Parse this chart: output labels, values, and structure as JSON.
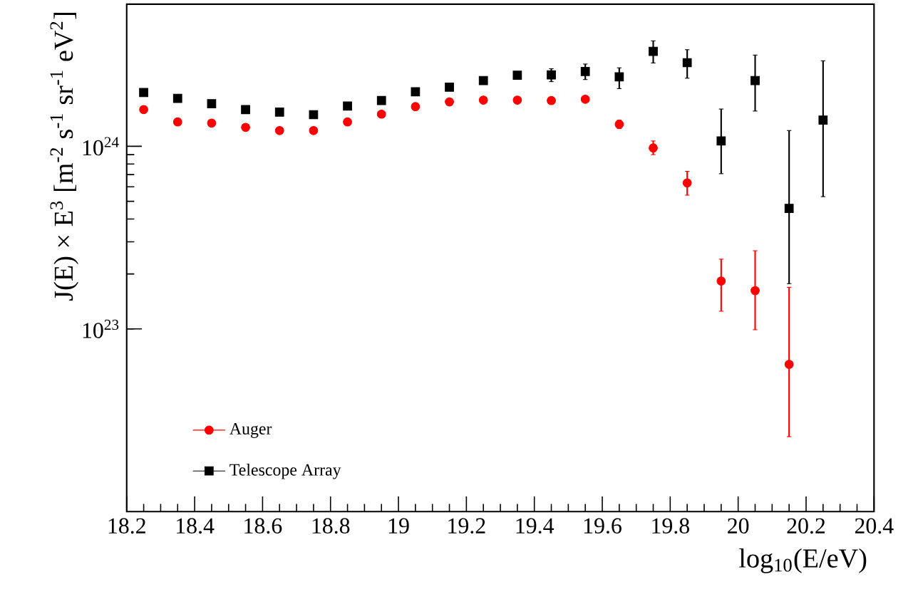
{
  "chart_data": {
    "type": "scatter",
    "xlabel": "log$_{10}$(E/eV)",
    "ylabel": "J(E) × E$^{3}$ [m$^{-2}$ s$^{-1}$ sr$^{-1}$ eV$^{2}$]",
    "x": [
      18.25,
      18.35,
      18.45,
      18.55,
      18.65,
      18.75,
      18.85,
      18.95,
      19.05,
      19.15,
      19.25,
      19.35,
      19.45,
      19.55,
      19.65,
      19.75,
      19.85,
      19.95,
      20.05,
      20.15,
      20.25
    ],
    "series": [
      {
        "name": "Auger",
        "color": "#ff0000",
        "marker": "circle",
        "values": [
          1.59e+24,
          1.36e+24,
          1.34e+24,
          1.27e+24,
          1.22e+24,
          1.22e+24,
          1.36e+24,
          1.5e+24,
          1.65e+24,
          1.75e+24,
          1.79e+24,
          1.79e+24,
          1.78e+24,
          1.81e+24,
          1.32e+24,
          9.8e+23,
          6.3e+23,
          1.83e+23,
          1.62e+23,
          6.4e+22,
          null
        ],
        "errors": [
          null,
          null,
          null,
          null,
          null,
          null,
          null,
          null,
          null,
          null,
          null,
          null,
          null,
          null,
          [
            1.25e+24,
            1.39e+24
          ],
          [
            9e+23,
            1.07e+24
          ],
          [
            5.4e+23,
            7.3e+23
          ],
          [
            1.25e+23,
            2.41e+23
          ],
          [
            9.9e+22,
            2.68e+23
          ],
          [
            2.57e+22,
            1.69e+23
          ],
          null
        ]
      },
      {
        "name": "Telescope Array",
        "color": "#000000",
        "marker": "square",
        "values": [
          1.97e+24,
          1.83e+24,
          1.71e+24,
          1.59e+24,
          1.54e+24,
          1.49e+24,
          1.66e+24,
          1.78e+24,
          1.99e+24,
          2.11e+24,
          2.29e+24,
          2.45e+24,
          2.46e+24,
          2.57e+24,
          2.4e+24,
          3.31e+24,
          2.87e+24,
          1.07e+24,
          2.29e+24,
          4.57e+23,
          1.39e+24
        ],
        "errors": [
          null,
          null,
          null,
          null,
          null,
          null,
          null,
          null,
          null,
          null,
          null,
          null,
          [
            2.26e+24,
            2.66e+24
          ],
          [
            2.32e+24,
            2.82e+24
          ],
          [
            2.07e+24,
            2.69e+24
          ],
          [
            2.86e+24,
            3.78e+24
          ],
          [
            2.36e+24,
            3.38e+24
          ],
          [
            7.08e+23,
            1.6e+24
          ],
          [
            1.56e+24,
            3.16e+24
          ],
          [
            1.77e+23,
            1.22e+24
          ],
          [
            5.3e+23,
            2.94e+24
          ]
        ]
      }
    ],
    "log": "y",
    "xlim": [
      18.2,
      20.4
    ],
    "xticks": [
      18.2,
      18.4,
      18.6,
      18.8,
      19,
      19.2,
      19.4,
      19.6,
      19.8,
      20,
      20.2,
      20.4
    ],
    "ylim": [
      1e+22,
      6e+24
    ],
    "yticks": [
      {
        "value": 1e+23,
        "label": "10$^{23}$"
      },
      {
        "value": 1e+24,
        "label": "10$^{24}$"
      }
    ],
    "grid": false,
    "legend": "bottom left"
  }
}
